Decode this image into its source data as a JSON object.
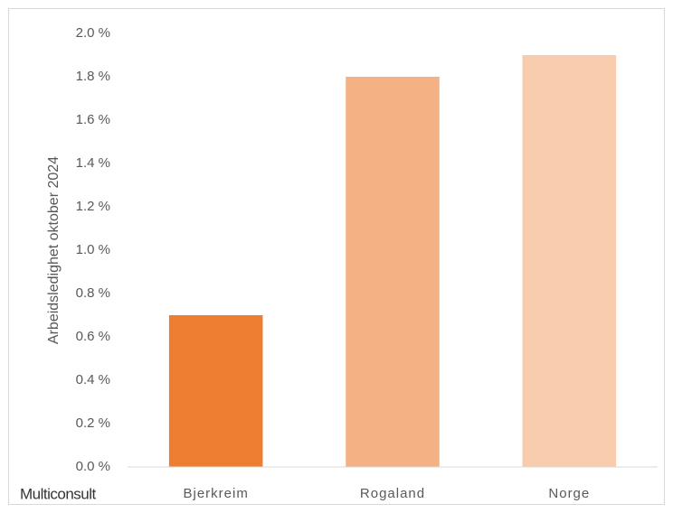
{
  "chart_data": {
    "type": "bar",
    "y_label": "Arbeidsledighet oktober 2024",
    "watermark": "Multiconsult",
    "categories": [
      "Bjerkreim",
      "Rogaland",
      "Norge"
    ],
    "values": [
      0.7,
      1.8,
      1.9
    ],
    "colors": [
      "#ed7d31",
      "#f4b183",
      "#f8cbad"
    ],
    "ylim": [
      0,
      2
    ],
    "yticks": [
      {
        "value": 0,
        "label": "0.0 %"
      },
      {
        "value": 0.2,
        "label": "0.2 %"
      },
      {
        "value": 0.4,
        "label": "0.4 %"
      },
      {
        "value": 0.6,
        "label": "0.6 %"
      },
      {
        "value": 0.8,
        "label": "0.8 %"
      },
      {
        "value": 1,
        "label": "1.0 %"
      },
      {
        "value": 1.2,
        "label": "1.2 %"
      },
      {
        "value": 1.4,
        "label": "1.4 %"
      },
      {
        "value": 1.6,
        "label": "1.6 %"
      },
      {
        "value": 1.8,
        "label": "1.8 %"
      },
      {
        "value": 2,
        "label": "2.0 %"
      }
    ],
    "grid": false
  }
}
